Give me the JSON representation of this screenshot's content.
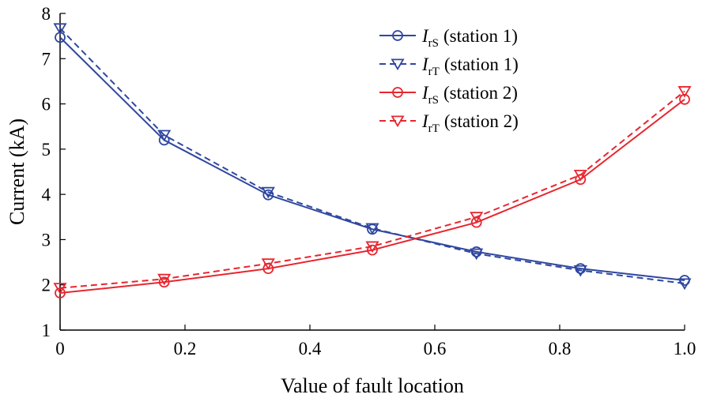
{
  "chart_data": {
    "type": "line",
    "xlabel": "Value of fault location",
    "ylabel": "Current (kA)",
    "xlim": [
      0,
      1.0
    ],
    "ylim": [
      1,
      8
    ],
    "xticks": [
      "0",
      "0.2",
      "0.4",
      "0.6",
      "0.8",
      "1.0"
    ],
    "yticks": [
      "1",
      "2",
      "3",
      "4",
      "5",
      "6",
      "7",
      "8"
    ],
    "grid": false,
    "legend_position": "top-right",
    "x": [
      0,
      0.1667,
      0.3333,
      0.5,
      0.6667,
      0.8333,
      1.0
    ],
    "series": [
      {
        "name": "I_rS (station 1)",
        "symbol": "I",
        "sub": "rS",
        "suffix": "(station 1)",
        "color": "#2f47a0",
        "dash": "solid",
        "marker": "circle",
        "values": [
          7.47,
          5.2,
          3.99,
          3.23,
          2.73,
          2.36,
          2.1
        ]
      },
      {
        "name": "I_rT (station 1)",
        "symbol": "I",
        "sub": "rT",
        "suffix": "(station 1)",
        "color": "#2f47a0",
        "dash": "dashed",
        "marker": "triangle",
        "values": [
          7.67,
          5.31,
          4.05,
          3.25,
          2.69,
          2.32,
          2.03
        ]
      },
      {
        "name": "I_rS (station 2)",
        "symbol": "I",
        "sub": "rS",
        "suffix": "(station 2)",
        "color": "#e8262f",
        "dash": "solid",
        "marker": "circle",
        "values": [
          1.82,
          2.06,
          2.36,
          2.77,
          3.38,
          4.33,
          6.1
        ]
      },
      {
        "name": "I_rT (station 2)",
        "symbol": "I",
        "sub": "rT",
        "suffix": "(station 2)",
        "color": "#e8262f",
        "dash": "dashed",
        "marker": "triangle",
        "values": [
          1.93,
          2.13,
          2.47,
          2.85,
          3.5,
          4.43,
          6.28
        ]
      }
    ]
  }
}
